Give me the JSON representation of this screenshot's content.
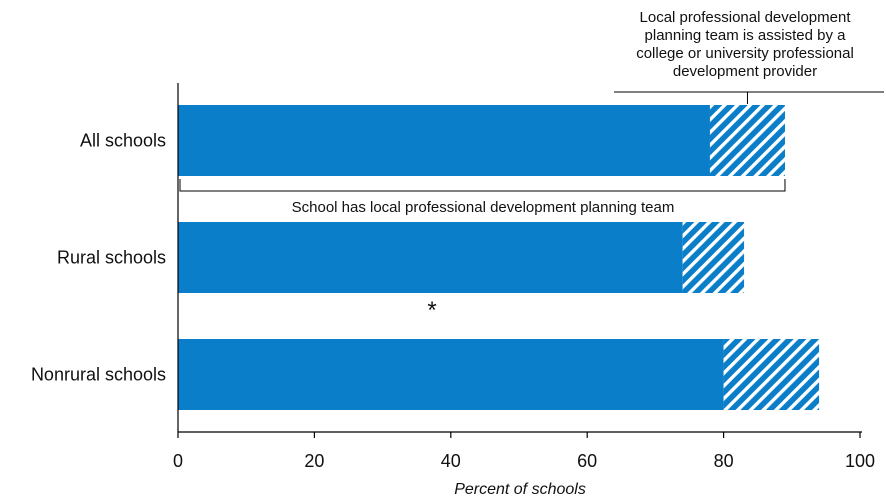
{
  "chart_data": {
    "type": "bar",
    "orientation": "horizontal",
    "stacked": true,
    "categories": [
      "All schools",
      "Rural schools",
      "Nonrural schools"
    ],
    "series": [
      {
        "values": [
          78,
          74,
          80
        ],
        "color": "#0a7ec8",
        "pattern": "solid"
      },
      {
        "values": [
          11,
          9,
          14
        ],
        "color": "#0a7ec8",
        "pattern": "diagonal-hatch"
      }
    ],
    "xlabel": "Percent of schools",
    "xlim": [
      0,
      100
    ],
    "xticks": [
      "0",
      "20",
      "40",
      "60",
      "80",
      "100"
    ],
    "grid": false,
    "annotations": {
      "assisted": "Local professional development planning team is assisted by a college or university professional development provider",
      "assisted_lines": [
        "Local professional development",
        "planning team is assisted by a",
        "college or university professional",
        "development provider"
      ],
      "has_team": "School has local professional development planning team",
      "significance_marker": "*",
      "significance_marker_category": "Rural schools"
    }
  }
}
